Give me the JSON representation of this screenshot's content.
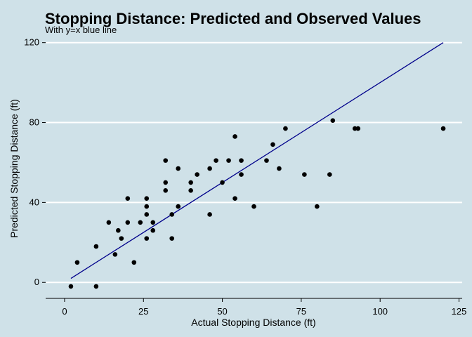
{
  "chart_data": {
    "type": "scatter",
    "title": "Stopping Distance: Predicted and Observed Values",
    "subtitle": "With y=x blue line",
    "xlabel": "Actual Stopping Distance (ft)",
    "ylabel": "Predicted Stopping Distance (ft)",
    "xlim": [
      -6,
      126
    ],
    "ylim": [
      -8,
      122
    ],
    "x_ticks": [
      0,
      25,
      50,
      75,
      100,
      125
    ],
    "y_ticks": [
      0,
      40,
      80,
      120
    ],
    "grid": "horizontal",
    "reference_line": {
      "label": "y=x",
      "color": "#00008b",
      "from": [
        2,
        2
      ],
      "to": [
        120,
        120
      ]
    },
    "points_color": "#000000",
    "points": [
      {
        "x": 2,
        "y": -2
      },
      {
        "x": 4,
        "y": 10
      },
      {
        "x": 10,
        "y": -2
      },
      {
        "x": 10,
        "y": 18
      },
      {
        "x": 14,
        "y": 30
      },
      {
        "x": 16,
        "y": 14
      },
      {
        "x": 17,
        "y": 26
      },
      {
        "x": 18,
        "y": 22
      },
      {
        "x": 20,
        "y": 42
      },
      {
        "x": 20,
        "y": 30
      },
      {
        "x": 22,
        "y": 10
      },
      {
        "x": 24,
        "y": 30
      },
      {
        "x": 26,
        "y": 42
      },
      {
        "x": 26,
        "y": 38
      },
      {
        "x": 26,
        "y": 34
      },
      {
        "x": 26,
        "y": 22
      },
      {
        "x": 28,
        "y": 26
      },
      {
        "x": 28,
        "y": 30
      },
      {
        "x": 32,
        "y": 61
      },
      {
        "x": 32,
        "y": 50
      },
      {
        "x": 32,
        "y": 46
      },
      {
        "x": 34,
        "y": 34
      },
      {
        "x": 34,
        "y": 22
      },
      {
        "x": 36,
        "y": 57
      },
      {
        "x": 36,
        "y": 38
      },
      {
        "x": 40,
        "y": 50
      },
      {
        "x": 40,
        "y": 46
      },
      {
        "x": 42,
        "y": 54
      },
      {
        "x": 46,
        "y": 57
      },
      {
        "x": 46,
        "y": 34
      },
      {
        "x": 48,
        "y": 61
      },
      {
        "x": 50,
        "y": 50
      },
      {
        "x": 52,
        "y": 61
      },
      {
        "x": 54,
        "y": 73
      },
      {
        "x": 54,
        "y": 42
      },
      {
        "x": 56,
        "y": 61
      },
      {
        "x": 56,
        "y": 54
      },
      {
        "x": 60,
        "y": 38
      },
      {
        "x": 64,
        "y": 61
      },
      {
        "x": 66,
        "y": 69
      },
      {
        "x": 68,
        "y": 57
      },
      {
        "x": 70,
        "y": 77
      },
      {
        "x": 76,
        "y": 54
      },
      {
        "x": 80,
        "y": 38
      },
      {
        "x": 84,
        "y": 54
      },
      {
        "x": 85,
        "y": 81
      },
      {
        "x": 92,
        "y": 77
      },
      {
        "x": 93,
        "y": 77
      },
      {
        "x": 120,
        "y": 77
      }
    ]
  }
}
